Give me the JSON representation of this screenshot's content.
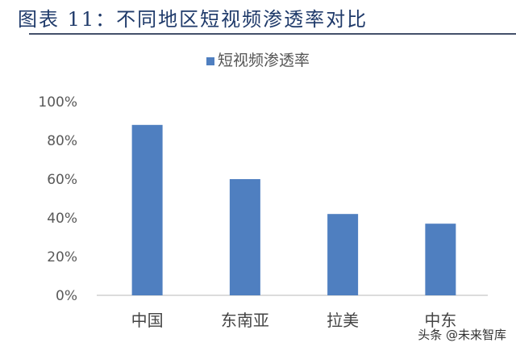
{
  "title": "图表 11：不同地区短视频渗透率对比",
  "watermark": "头条 @未来智库",
  "chart_data": {
    "type": "bar",
    "title": "",
    "categories": [
      "中国",
      "东南亚",
      "拉美",
      "中东"
    ],
    "series": [
      {
        "name": "短视频渗透率",
        "values": [
          88,
          60,
          42,
          37
        ],
        "color": "#4f7fc0"
      }
    ],
    "ylim": [
      0,
      100
    ],
    "yticks": [
      "0%",
      "20%",
      "40%",
      "60%",
      "80%",
      "100%"
    ],
    "xlabel": "",
    "ylabel": "",
    "grid": false,
    "legend": "top-center"
  }
}
